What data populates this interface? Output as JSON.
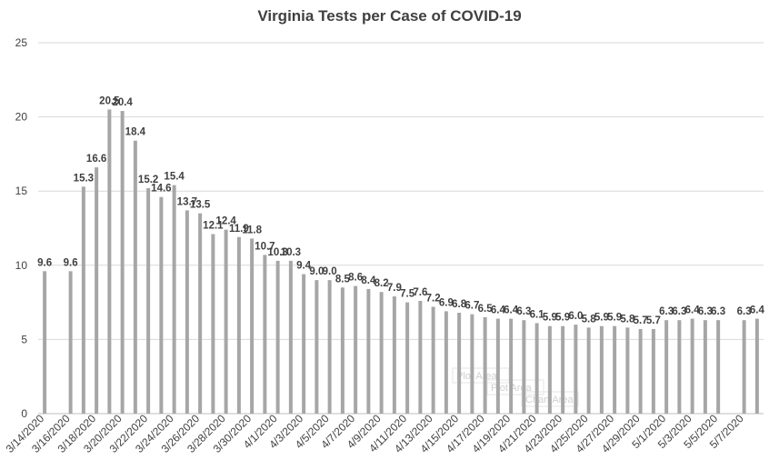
{
  "chart_data": {
    "type": "bar",
    "title": "Virginia Tests per Case of COVID-19",
    "xlabel": "",
    "ylabel": "",
    "ylim": [
      0,
      25
    ],
    "yticks": [
      0,
      5,
      10,
      15,
      20,
      25
    ],
    "grid": true,
    "legend": "none",
    "bar_color": "#a6a6a6",
    "grid_color": "#d9d9d9",
    "categories": [
      "3/14/2020",
      "3/15/2020",
      "3/16/2020",
      "3/17/2020",
      "3/18/2020",
      "3/19/2020",
      "3/20/2020",
      "3/21/2020",
      "3/22/2020",
      "3/23/2020",
      "3/24/2020",
      "3/25/2020",
      "3/26/2020",
      "3/27/2020",
      "3/28/2020",
      "3/29/2020",
      "3/30/2020",
      "3/31/2020",
      "4/1/2020",
      "4/2/2020",
      "4/3/2020",
      "4/4/2020",
      "4/5/2020",
      "4/6/2020",
      "4/7/2020",
      "4/8/2020",
      "4/9/2020",
      "4/10/2020",
      "4/11/2020",
      "4/12/2020",
      "4/13/2020",
      "4/14/2020",
      "4/15/2020",
      "4/16/2020",
      "4/17/2020",
      "4/18/2020",
      "4/19/2020",
      "4/20/2020",
      "4/21/2020",
      "4/22/2020",
      "4/23/2020",
      "4/24/2020",
      "4/25/2020",
      "4/26/2020",
      "4/27/2020",
      "4/28/2020",
      "4/29/2020",
      "4/30/2020",
      "5/1/2020",
      "5/2/2020",
      "5/3/2020",
      "5/4/2020",
      "5/5/2020",
      "5/6/2020",
      "5/7/2020",
      "5/8/2020"
    ],
    "tick_labels_shown": [
      "3/14/2020",
      "",
      "3/16/2020",
      "",
      "3/18/2020",
      "",
      "3/20/2020",
      "",
      "3/22/2020",
      "",
      "3/24/2020",
      "",
      "3/26/2020",
      "",
      "3/28/2020",
      "",
      "3/30/2020",
      "",
      "4/1/2020",
      "",
      "4/3/2020",
      "",
      "4/5/2020",
      "",
      "4/7/2020",
      "",
      "4/9/2020",
      "",
      "4/11/2020",
      "",
      "4/13/2020",
      "",
      "4/15/2020",
      "",
      "4/17/2020",
      "",
      "4/19/2020",
      "",
      "4/21/2020",
      "",
      "4/23/2020",
      "",
      "4/25/2020",
      "",
      "4/27/2020",
      "",
      "4/29/2020",
      "",
      "5/1/2020",
      "",
      "5/3/2020",
      "",
      "5/5/2020",
      "",
      "5/7/2020",
      ""
    ],
    "values": [
      9.6,
      null,
      9.6,
      15.3,
      16.6,
      20.5,
      20.4,
      18.4,
      15.2,
      14.6,
      15.4,
      13.7,
      13.5,
      12.1,
      12.4,
      11.9,
      11.8,
      10.7,
      10.3,
      10.3,
      9.4,
      9.0,
      9.0,
      8.5,
      8.6,
      8.4,
      8.2,
      7.9,
      7.5,
      7.6,
      7.2,
      6.9,
      6.8,
      6.7,
      6.5,
      6.4,
      6.4,
      6.3,
      6.1,
      5.9,
      5.9,
      6.0,
      5.8,
      5.9,
      5.9,
      5.8,
      5.7,
      5.7,
      6.3,
      6.3,
      6.4,
      6.3,
      6.3,
      null,
      6.3,
      6.4
    ],
    "data_labels": [
      "9.6",
      "",
      "9.6",
      "15.3",
      "16.6",
      "20.5",
      "20.4",
      "18.4",
      "15.2",
      "14.6",
      "15.4",
      "13.7",
      "13.5",
      "12.1",
      "12.4",
      "11.9",
      "11.8",
      "10.7",
      "10.3",
      "10.3",
      "9.4",
      "9.0",
      "9.0",
      "8.5",
      "8.6",
      "8.4",
      "8.2",
      "7.9",
      "7.5",
      "7.6",
      "7.2",
      "6.9",
      "6.8",
      "6.7",
      "6.5",
      "6.4",
      "6.4",
      "6.3",
      "6.1",
      "5.9",
      "5.9",
      "6.0",
      "5.8",
      "5.9",
      "5.9",
      "5.8",
      "5.7",
      "5.7",
      "6.3",
      "6.3",
      "6.4",
      "6.3",
      "6.3",
      "",
      "6.3",
      "6.4"
    ],
    "watermarks": [
      "Plot Area",
      "Plot Area",
      "Chart Area"
    ]
  }
}
